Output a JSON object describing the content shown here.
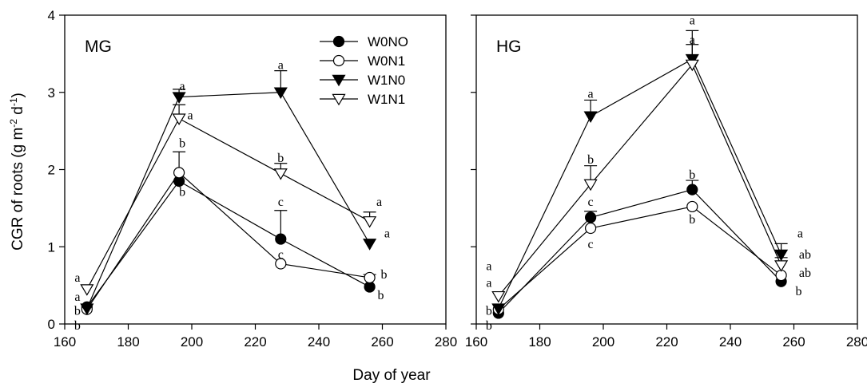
{
  "figure": {
    "ylabel_main": "CGR of roots (g m",
    "ylabel_sup1": "-2",
    "ylabel_mid": " d",
    "ylabel_sup2": "-1",
    "ylabel_end": ")",
    "xlabel": "Day of  year"
  },
  "colors": {
    "ink": "#000000",
    "background": "#ffffff"
  },
  "legend": {
    "placement": "top-right of left panel",
    "entries": [
      {
        "label": "W0NO",
        "marker": "circle-filled"
      },
      {
        "label": "W0N1",
        "marker": "circle-open"
      },
      {
        "label": "W1N0",
        "marker": "triangle-down-filled"
      },
      {
        "label": "W1N1",
        "marker": "triangle-down-open"
      }
    ]
  },
  "chart_data": [
    {
      "type": "line",
      "panel_label": "MG",
      "xlim": [
        160,
        280
      ],
      "ylim": [
        0,
        4
      ],
      "xticks": [
        160,
        180,
        200,
        220,
        240,
        260,
        280
      ],
      "yticks": [
        0,
        1,
        2,
        3,
        4
      ],
      "series": [
        {
          "name": "W0NO",
          "marker": "circle-filled",
          "x": [
            167,
            196,
            228,
            256
          ],
          "y": [
            0.22,
            1.85,
            1.1,
            0.48
          ],
          "err": [
            0,
            0,
            0.37,
            0
          ]
        },
        {
          "name": "W0N1",
          "marker": "circle-open",
          "x": [
            167,
            196,
            228,
            256
          ],
          "y": [
            0.19,
            1.96,
            0.78,
            0.6
          ],
          "err": [
            0,
            0.27,
            0,
            0.04
          ]
        },
        {
          "name": "W1N0",
          "marker": "triangle-down-filled",
          "x": [
            167,
            196,
            228,
            256
          ],
          "y": [
            0.2,
            2.94,
            3.0,
            1.04
          ],
          "err": [
            0,
            0.1,
            0.28,
            0
          ]
        },
        {
          "name": "W1N1",
          "marker": "triangle-down-open",
          "x": [
            167,
            196,
            228,
            256
          ],
          "y": [
            0.45,
            2.66,
            1.95,
            1.33
          ],
          "err": [
            0,
            0.18,
            0.13,
            0.12
          ]
        }
      ],
      "annotations": [
        {
          "text": "a",
          "x": 164,
          "y": 0.55
        },
        {
          "text": "a",
          "x": 164,
          "y": 0.3
        },
        {
          "text": "b",
          "x": 164,
          "y": 0.12
        },
        {
          "text": "b",
          "x": 164,
          "y": -0.07
        },
        {
          "text": "a",
          "x": 197,
          "y": 3.03
        },
        {
          "text": "a",
          "x": 199.5,
          "y": 2.65
        },
        {
          "text": "b",
          "x": 197,
          "y": 2.29
        },
        {
          "text": "b",
          "x": 197,
          "y": 1.66
        },
        {
          "text": "a",
          "x": 228,
          "y": 3.3
        },
        {
          "text": "b",
          "x": 228,
          "y": 2.1
        },
        {
          "text": "c",
          "x": 228,
          "y": 1.53
        },
        {
          "text": "c",
          "x": 228,
          "y": 0.85
        },
        {
          "text": "a",
          "x": 259,
          "y": 1.53
        },
        {
          "text": "a",
          "x": 261.5,
          "y": 1.12
        },
        {
          "text": "b",
          "x": 260.5,
          "y": 0.59
        },
        {
          "text": "b",
          "x": 259.5,
          "y": 0.32
        }
      ]
    },
    {
      "type": "line",
      "panel_label": "HG",
      "xlim": [
        160,
        280
      ],
      "ylim": [
        0,
        4
      ],
      "xticks": [
        160,
        180,
        200,
        220,
        240,
        260,
        280
      ],
      "yticks": [
        0,
        1,
        2,
        3,
        4
      ],
      "series": [
        {
          "name": "W0NO",
          "marker": "circle-filled",
          "x": [
            167,
            196,
            228,
            256
          ],
          "y": [
            0.14,
            1.38,
            1.74,
            0.55
          ],
          "err": [
            0,
            0.08,
            0.12,
            0
          ]
        },
        {
          "name": "W0N1",
          "marker": "circle-open",
          "x": [
            167,
            196,
            228,
            256
          ],
          "y": [
            0.19,
            1.24,
            1.52,
            0.63
          ],
          "err": [
            0,
            0,
            0,
            0
          ]
        },
        {
          "name": "W1N0",
          "marker": "triangle-down-filled",
          "x": [
            167,
            196,
            228,
            256
          ],
          "y": [
            0.2,
            2.69,
            3.43,
            0.9
          ],
          "err": [
            0,
            0.21,
            0.37,
            0.14
          ]
        },
        {
          "name": "W1N1",
          "marker": "triangle-down-open",
          "x": [
            167,
            196,
            228,
            256
          ],
          "y": [
            0.36,
            1.81,
            3.36,
            0.76
          ],
          "err": [
            0,
            0.24,
            0.26,
            0.1
          ]
        }
      ],
      "annotations": [
        {
          "text": "a",
          "x": 164,
          "y": 0.7
        },
        {
          "text": "a",
          "x": 164,
          "y": 0.48
        },
        {
          "text": "b",
          "x": 164,
          "y": 0.12
        },
        {
          "text": "b",
          "x": 164,
          "y": -0.07
        },
        {
          "text": "a",
          "x": 196,
          "y": 2.93
        },
        {
          "text": "b",
          "x": 196,
          "y": 2.08
        },
        {
          "text": "c",
          "x": 196,
          "y": 1.53
        },
        {
          "text": "c",
          "x": 196,
          "y": 0.98
        },
        {
          "text": "a",
          "x": 228,
          "y": 3.88
        },
        {
          "text": "a",
          "x": 228,
          "y": 3.63
        },
        {
          "text": "b",
          "x": 228,
          "y": 1.88
        },
        {
          "text": "b",
          "x": 228,
          "y": 1.3
        },
        {
          "text": "a",
          "x": 262,
          "y": 1.12
        },
        {
          "text": "ab",
          "x": 263.5,
          "y": 0.85
        },
        {
          "text": "ab",
          "x": 263.5,
          "y": 0.61
        },
        {
          "text": "b",
          "x": 261.5,
          "y": 0.37
        }
      ]
    }
  ]
}
